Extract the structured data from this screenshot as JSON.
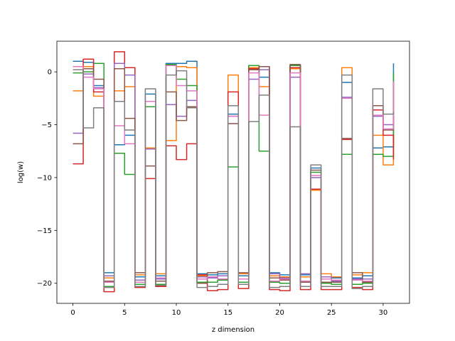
{
  "chart_data": {
    "type": "line",
    "step": "post",
    "title": "",
    "xlabel": "z dimension",
    "ylabel": "log(w)",
    "xlim": [
      -1.55,
      32.55
    ],
    "ylim": [
      -21.9,
      2.9
    ],
    "xticks": [
      0,
      5,
      10,
      15,
      20,
      25,
      30
    ],
    "yticks": [
      0,
      -5,
      -10,
      -15,
      -20
    ],
    "grid": false,
    "legend": "none",
    "x": [
      0,
      1,
      2,
      3,
      4,
      5,
      6,
      7,
      8,
      9,
      10,
      11,
      12,
      13,
      14,
      15,
      16,
      17,
      18,
      19,
      20,
      21,
      22,
      23,
      24,
      25,
      26,
      27,
      28,
      29,
      30,
      31
    ],
    "series": [
      {
        "color": "#1f77b4",
        "values": [
          1.0,
          0.9,
          -1.3,
          -19.0,
          -6.9,
          -6.0,
          -19.4,
          -2.1,
          -19.3,
          0.8,
          0.8,
          1.0,
          -19.1,
          -19.2,
          -19.1,
          -4.0,
          -19.3,
          0.6,
          -0.5,
          -19.0,
          -19.2,
          0.6,
          -19.2,
          -9.1,
          -19.6,
          -19.5,
          -1.0,
          -19.5,
          -19.3,
          -7.2,
          -7.1,
          0.8
        ]
      },
      {
        "color": "#ff7f0e",
        "values": [
          -1.8,
          0.5,
          -2.3,
          -19.5,
          -1.8,
          -1.4,
          -19.2,
          -7.2,
          -19.1,
          -6.5,
          0.5,
          0.4,
          -19.3,
          -19.5,
          -19.3,
          -0.3,
          -19.1,
          0.4,
          -1.4,
          -19.3,
          -19.4,
          0.3,
          -19.4,
          -11.2,
          -19.1,
          -19.4,
          0.4,
          -19.2,
          -19.0,
          -6.0,
          -8.8,
          -0.9
        ]
      },
      {
        "color": "#2ca02c",
        "values": [
          -0.1,
          0.0,
          0.8,
          -20.3,
          -7.7,
          -9.7,
          -20.1,
          -3.3,
          -20.1,
          0.7,
          -0.7,
          -1.3,
          -19.9,
          -19.9,
          -19.7,
          -9.0,
          -19.9,
          0.6,
          -7.5,
          -19.9,
          -20.0,
          0.6,
          -19.9,
          -9.5,
          -20.0,
          -20.1,
          -7.8,
          -20.1,
          -20.0,
          -7.8,
          -8.0,
          -0.1
        ]
      },
      {
        "color": "#d62728",
        "values": [
          -8.7,
          1.2,
          -1.9,
          -20.8,
          1.9,
          0.4,
          -20.4,
          -10.1,
          -20.3,
          -7.0,
          -8.3,
          -6.8,
          -19.2,
          -20.7,
          -20.6,
          -1.9,
          -20.5,
          0.3,
          0.5,
          -20.6,
          -20.7,
          0.4,
          -20.6,
          -11.1,
          -20.6,
          -20.6,
          -6.4,
          -20.4,
          -20.6,
          -3.6,
          -6.0,
          -8.3
        ]
      },
      {
        "color": "#9467bd",
        "values": [
          -5.8,
          -0.2,
          -1.5,
          -19.3,
          0.8,
          -0.3,
          -19.7,
          -7.3,
          -19.6,
          -3.1,
          -4.2,
          -2.7,
          -19.4,
          -19.5,
          -19.3,
          -4.2,
          -19.6,
          -0.7,
          0.2,
          -19.1,
          -19.5,
          -0.5,
          -19.1,
          -10.0,
          -19.4,
          -19.8,
          -2.4,
          -19.6,
          -19.6,
          -4.2,
          -5.0,
          -4.0
        ]
      },
      {
        "color": "#8c564b",
        "values": [
          -6.8,
          0.3,
          -0.7,
          -19.8,
          0.3,
          -4.4,
          -19.0,
          -8.9,
          -19.8,
          -1.9,
          -4.6,
          -3.3,
          -20.0,
          -19.0,
          -18.9,
          -4.9,
          -19.0,
          0.2,
          0.5,
          -19.5,
          -19.7,
          0.7,
          -19.9,
          -9.3,
          -19.9,
          -19.9,
          -6.3,
          -19.0,
          -19.9,
          -3.2,
          -5.5,
          -4.2
        ]
      },
      {
        "color": "#e377c2",
        "values": [
          0.5,
          -0.5,
          -1.6,
          -19.9,
          -5.1,
          -6.8,
          -19.9,
          -2.8,
          -19.5,
          0.6,
          -1.3,
          -1.8,
          -19.6,
          -19.4,
          -19.6,
          -4.2,
          -19.6,
          -0.1,
          -4.1,
          -19.8,
          -19.6,
          -0.1,
          -19.8,
          -9.8,
          -19.6,
          -19.7,
          -2.5,
          -19.7,
          -19.8,
          -4.1,
          -5.4,
          -0.9
        ]
      },
      {
        "color": "#7f7f7f",
        "values": [
          0.2,
          -5.3,
          -3.4,
          -20.4,
          -2.8,
          -5.5,
          -20.3,
          -1.6,
          -20.2,
          -0.3,
          0.1,
          -3.4,
          -20.4,
          -20.3,
          -20.1,
          -3.2,
          -20.1,
          -4.7,
          -2.2,
          -20.4,
          -20.3,
          -5.2,
          -20.3,
          -8.8,
          -20.3,
          -20.3,
          -0.3,
          -20.5,
          -20.3,
          -1.6,
          -4.0,
          -3.8
        ]
      }
    ]
  }
}
